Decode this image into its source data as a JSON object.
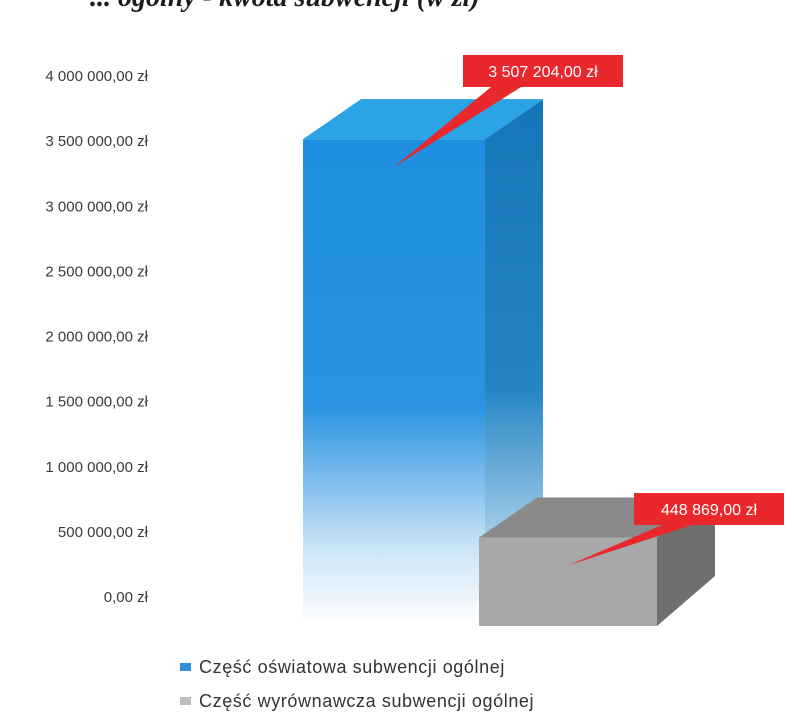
{
  "header": {
    "title_fragment": "... ogólny - kwota subwencji (w zł)"
  },
  "colors": {
    "series_1_top": "#1e8fe0",
    "series_1_side": "#1677b8",
    "series_1_cap": "#2aa4e4",
    "series_2_front": "#a8a8a8",
    "series_2_top": "#8a8a8a",
    "series_2_side": "#6f6f6f",
    "label_bg": "#e8282d"
  },
  "chart_data": {
    "type": "bar",
    "categories": [
      "Część oświatowa subwencji ogólnej",
      "Część wyrównawcza subwencji ogólnej"
    ],
    "values": [
      3507204.0,
      448869.0
    ],
    "ylim": [
      0,
      4000000
    ],
    "y_ticks": [
      {
        "value": 0,
        "label": "0,00 zł"
      },
      {
        "value": 500000,
        "label": "500 000,00 zł"
      },
      {
        "value": 1000000,
        "label": "1 000 000,00 zł"
      },
      {
        "value": 1500000,
        "label": "1 500 000,00 zł"
      },
      {
        "value": 2000000,
        "label": "2 000 000,00 zł"
      },
      {
        "value": 2500000,
        "label": "2 500 000,00 zł"
      },
      {
        "value": 3000000,
        "label": "3 000 000,00 zł"
      },
      {
        "value": 3500000,
        "label": "3 500 000,00 zł"
      },
      {
        "value": 4000000,
        "label": "4 000 000,00 zł"
      }
    ],
    "data_labels": [
      "3 507 204,00 zł",
      "448 869,00 zł"
    ],
    "legend": {
      "placement": "bottom",
      "items": [
        "Część oświatowa subwencji ogólnej",
        "Część wyrównawcza subwencji ogólnej"
      ]
    },
    "grid": false
  }
}
